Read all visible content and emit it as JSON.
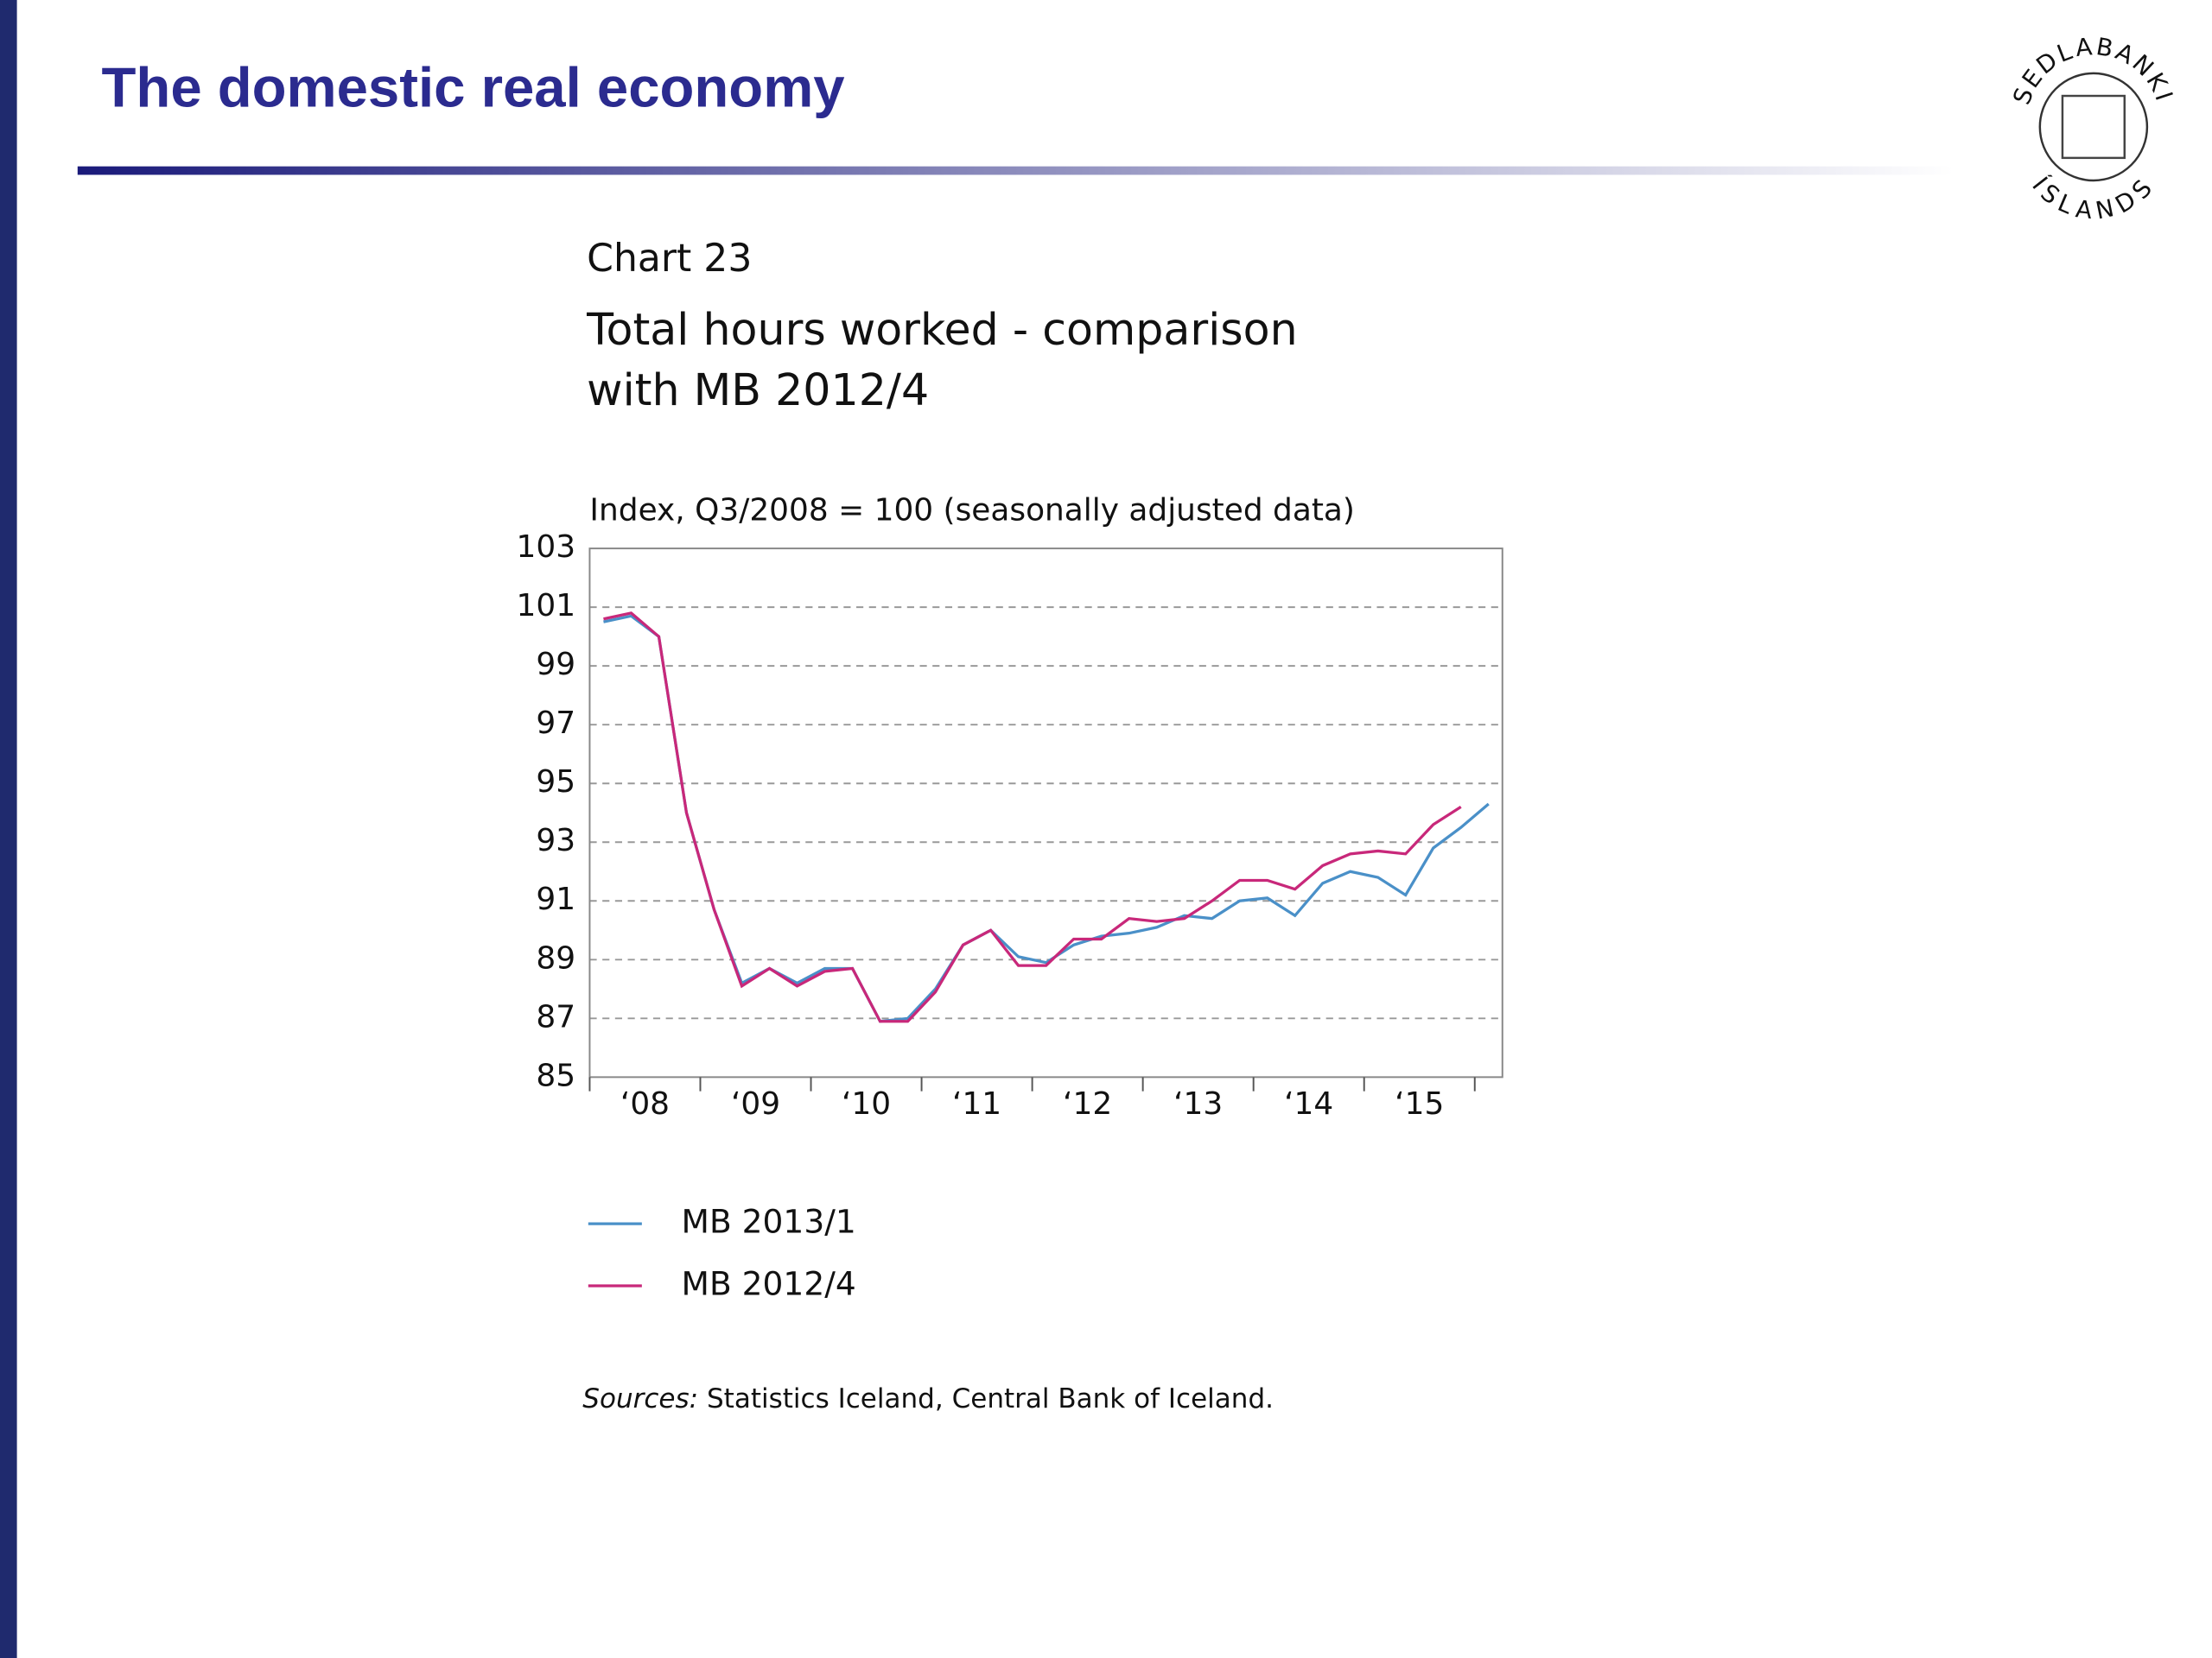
{
  "header": {
    "title": "The domestic real economy"
  },
  "logo": {
    "top": "SEDLABANKI",
    "bottom": "ÍSLANDS"
  },
  "chart_data": {
    "type": "line",
    "label": "Chart 23",
    "title": [
      "Total hours worked - comparison",
      "with MB 2012/4"
    ],
    "subtitle": "Index, Q3/2008 = 100 (seasonally adjusted data)",
    "categories": [
      null,
      null,
      null,
      null,
      null,
      null,
      null,
      null,
      null,
      null,
      null,
      null,
      null,
      null,
      null,
      null,
      null,
      null,
      null,
      null,
      null,
      null,
      null,
      null,
      null,
      null,
      null,
      null,
      null,
      null,
      null,
      null,
      null
    ],
    "x_labels": [
      "‘08",
      "‘09",
      "‘10",
      "‘11",
      "‘12",
      "‘13",
      "‘14",
      "‘15"
    ],
    "series": [
      {
        "name": "MB 2013/1",
        "color": "#4a90c8",
        "values": [
          100.5,
          100.7,
          100.0,
          94.0,
          90.7,
          88.2,
          88.7,
          88.2,
          88.7,
          88.7,
          86.9,
          87.0,
          88.0,
          89.5,
          90.0,
          89.1,
          88.9,
          89.5,
          89.8,
          89.9,
          90.1,
          90.5,
          90.4,
          91.0,
          91.1,
          90.5,
          91.6,
          92.0,
          91.8,
          91.2,
          92.8,
          93.5,
          94.3
        ]
      },
      {
        "name": "MB 2012/4",
        "color": "#c8287a",
        "values": [
          100.6,
          100.8,
          100.0,
          94.0,
          90.7,
          88.1,
          88.7,
          88.1,
          88.6,
          88.7,
          86.9,
          86.9,
          87.9,
          89.5,
          90.0,
          88.8,
          88.8,
          89.7,
          89.7,
          90.4,
          90.3,
          90.4,
          91.0,
          91.7,
          91.7,
          91.4,
          92.2,
          92.6,
          92.7,
          92.6,
          93.6,
          94.2,
          null
        ]
      }
    ],
    "ylim": [
      85,
      103
    ],
    "yticks": [
      85,
      87,
      89,
      91,
      93,
      95,
      97,
      99,
      101,
      103
    ],
    "grid": true,
    "source": {
      "label": "Sources:",
      "text": "Statistics Iceland, Central Bank of Iceland."
    }
  }
}
